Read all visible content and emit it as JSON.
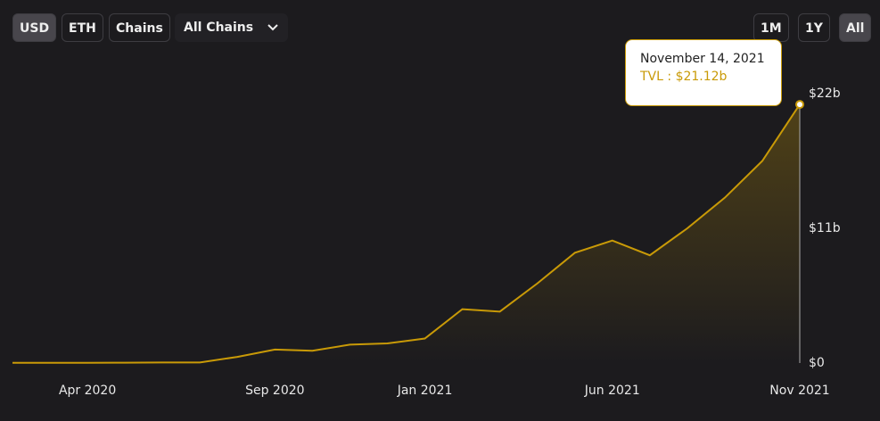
{
  "controls": {
    "currency": [
      "USD",
      "ETH"
    ],
    "chains_button": "Chains",
    "chain_select": "All Chains",
    "ranges": [
      "1M",
      "1Y",
      "All"
    ]
  },
  "tooltip": {
    "date": "November 14, 2021",
    "series_name": "TVL :",
    "value": 21.12,
    "value_label": "$21.12b"
  },
  "chart_data": {
    "type": "area",
    "color": "#c99a07",
    "x": [
      "2020-02",
      "2020-03",
      "2020-04",
      "2020-05",
      "2020-06",
      "2020-07",
      "2020-08",
      "2020-09",
      "2020-10",
      "2020-11",
      "2020-12",
      "2021-01",
      "2021-02",
      "2021-03",
      "2021-04",
      "2021-05",
      "2021-06",
      "2021-07",
      "2021-08",
      "2021-09",
      "2021-10",
      "2021-11"
    ],
    "series": [
      {
        "name": "TVL",
        "color": "#c99a07",
        "values": [
          0.02,
          0.02,
          0.02,
          0.03,
          0.05,
          0.05,
          0.5,
          1.1,
          1.0,
          1.5,
          1.6,
          2.0,
          4.4,
          4.2,
          6.5,
          9.0,
          10.0,
          8.8,
          11.0,
          13.5,
          16.5,
          21.12
        ]
      }
    ],
    "xlim": [
      "2020-02",
      "2021-11"
    ],
    "xticks": [
      {
        "value": "2020-04",
        "label": "Apr 2020"
      },
      {
        "value": "2020-09",
        "label": "Sep 2020"
      },
      {
        "value": "2021-01",
        "label": "Jan 2021"
      },
      {
        "value": "2021-06",
        "label": "Jun 2021"
      },
      {
        "value": "2021-11",
        "label": "Nov 2021"
      }
    ],
    "ylim": [
      0,
      22
    ],
    "yticks": [
      {
        "value": 0,
        "label": "$0"
      },
      {
        "value": 11,
        "label": "$11b"
      },
      {
        "value": 22,
        "label": "$22b"
      }
    ]
  }
}
